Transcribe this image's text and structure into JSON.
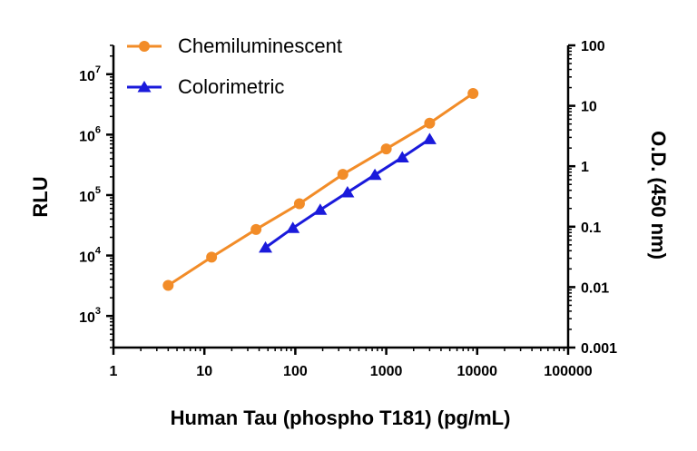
{
  "chart_data": {
    "type": "line",
    "xlabel": "Human Tau (phospho T181) (pg/mL)",
    "ylabel_left": "RLU",
    "ylabel_right": "O.D. (450 nm)",
    "x_scale": "log",
    "y_scale": "log",
    "xlim": [
      1,
      100000
    ],
    "ylim_left": [
      300,
      30000000
    ],
    "ylim_right": [
      0.001,
      100
    ],
    "x_tick_labels": [
      "1",
      "10",
      "100",
      "1000",
      "10000",
      "100000"
    ],
    "left_tick_labels": [
      {
        "base": "10",
        "exp": "3"
      },
      {
        "base": "10",
        "exp": "4"
      },
      {
        "base": "10",
        "exp": "5"
      },
      {
        "base": "10",
        "exp": "6"
      },
      {
        "base": "10",
        "exp": "7"
      }
    ],
    "right_tick_labels": [
      "0.001",
      "0.01",
      "0.1",
      "1",
      "10",
      "100"
    ],
    "legend_position": "top-left",
    "grid": false,
    "series": [
      {
        "name": "Chemiluminescent",
        "axis": "left",
        "color": "#f28c28",
        "marker": "circle",
        "x": [
          4,
          12,
          37,
          111,
          333,
          1000,
          3000,
          9000
        ],
        "y": [
          3200,
          9400,
          27000,
          72000,
          220000,
          580000,
          1550000,
          4800000
        ]
      },
      {
        "name": "Colorimetric",
        "axis": "right",
        "color": "#1a1adb",
        "marker": "triangle",
        "x": [
          47,
          94,
          188,
          375,
          750,
          1500,
          3000
        ],
        "y": [
          0.045,
          0.095,
          0.19,
          0.37,
          0.72,
          1.4,
          2.8
        ]
      }
    ]
  }
}
